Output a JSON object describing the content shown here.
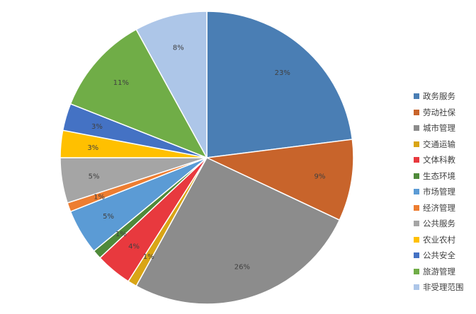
{
  "chart_data": {
    "type": "pie",
    "title": "",
    "legend_position": "right",
    "slices": [
      {
        "name": "政务服务",
        "value": 23,
        "label": "23%",
        "color": "#4a7eb4"
      },
      {
        "name": "劳动社保",
        "value": 9,
        "label": "9%",
        "color": "#c8642b"
      },
      {
        "name": "城市管理",
        "value": 26,
        "label": "26%",
        "color": "#8c8c8c"
      },
      {
        "name": "交通运输",
        "value": 1,
        "label": "1%",
        "color": "#d9a516"
      },
      {
        "name": "文体科教",
        "value": 4,
        "label": "4%",
        "color": "#e8393e"
      },
      {
        "name": "生态环境",
        "value": 1,
        "label": "1%",
        "color": "#4f8a3a"
      },
      {
        "name": "市场管理",
        "value": 5,
        "label": "5%",
        "color": "#5b9bd5"
      },
      {
        "name": "经济管理",
        "value": 1,
        "label": "1%",
        "color": "#ed7d31"
      },
      {
        "name": "公共服务",
        "value": 5,
        "label": "5%",
        "color": "#a5a5a5"
      },
      {
        "name": "农业农村",
        "value": 3,
        "label": "3%",
        "color": "#ffc000"
      },
      {
        "name": "公共安全",
        "value": 3,
        "label": "3%",
        "color": "#4472c4"
      },
      {
        "name": "旅游管理",
        "value": 11,
        "label": "11%",
        "color": "#70ad47"
      },
      {
        "name": "非受理范围",
        "value": 8,
        "label": "8%",
        "color": "#adc6e8"
      }
    ]
  }
}
